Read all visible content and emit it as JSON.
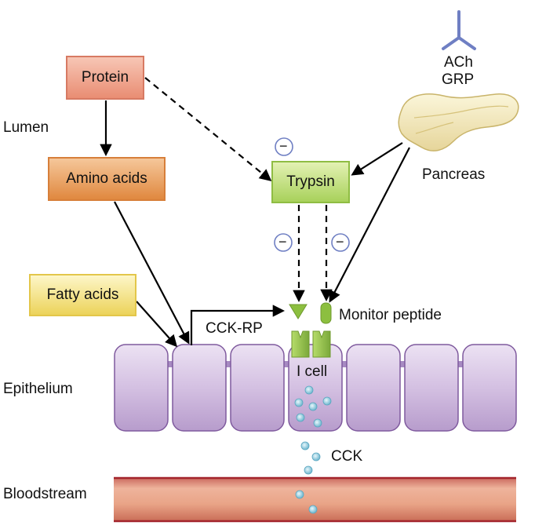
{
  "regions": {
    "lumen": "Lumen",
    "epithelium": "Epithelium",
    "bloodstream": "Bloodstream"
  },
  "boxes": {
    "protein": "Protein",
    "amino_acids": "Amino acids",
    "trypsin": "Trypsin",
    "fatty_acids": "Fatty acids"
  },
  "labels": {
    "ach": "ACh",
    "grp": "GRP",
    "pancreas": "Pancreas",
    "cck_rp": "CCK-RP",
    "monitor_peptide": "Monitor peptide",
    "i_cell": "I cell",
    "cck": "CCK",
    "inhibit_symbol": "−"
  },
  "colors": {
    "cell_fill": "#d9c6e6",
    "cell_border": "#7f5a9e",
    "vessel": "#e4a083",
    "vessel_border": "#b0333a",
    "receptor_green": "#8cbf3f",
    "granule": "#a9d9ea",
    "pancreas": "#f4ecc0",
    "receptor_blue": "#6f7fc3"
  }
}
